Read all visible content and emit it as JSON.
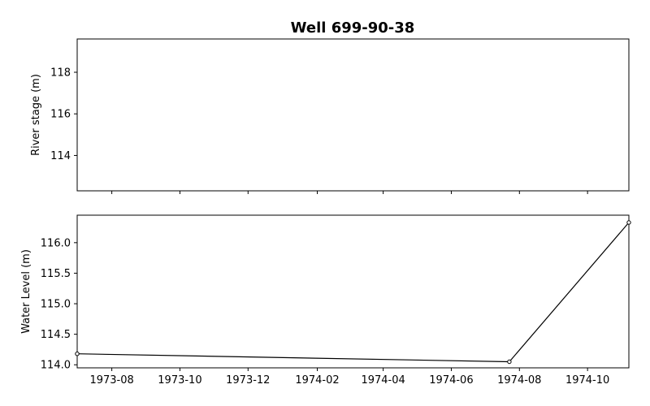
{
  "chart_data": [
    {
      "type": "line",
      "title": "Well 699-90-38",
      "xlabel": "",
      "ylabel": "River stage (m)",
      "x_range": [
        "1973-07-01",
        "1974-11-07"
      ],
      "ylim": [
        112.3,
        119.6
      ],
      "y_ticks": [
        114,
        116,
        118
      ],
      "x_ticks": [
        "1973-08",
        "1973-10",
        "1973-12",
        "1974-02",
        "1974-04",
        "1974-06",
        "1974-08",
        "1974-10"
      ],
      "show_x_tick_labels": false,
      "grid": false,
      "series": []
    },
    {
      "type": "line",
      "title": "",
      "xlabel": "",
      "ylabel": "Water Level (m)",
      "x_range": [
        "1973-07-01",
        "1974-11-07"
      ],
      "ylim": [
        113.95,
        116.45
      ],
      "y_ticks": [
        114.0,
        114.5,
        115.0,
        115.5,
        116.0
      ],
      "y_tick_labels": [
        "114.0",
        "114.5",
        "115.0",
        "115.5",
        "116.0"
      ],
      "x_ticks": [
        "1973-08",
        "1973-10",
        "1973-12",
        "1974-02",
        "1974-04",
        "1974-06",
        "1974-08",
        "1974-10"
      ],
      "show_x_tick_labels": true,
      "grid": false,
      "series": [
        {
          "x": [
            "1973-07-01",
            "1974-07-23",
            "1974-11-07"
          ],
          "y": [
            114.18,
            114.05,
            116.33
          ],
          "color": "#000000",
          "marker": "circle-open"
        }
      ]
    }
  ]
}
